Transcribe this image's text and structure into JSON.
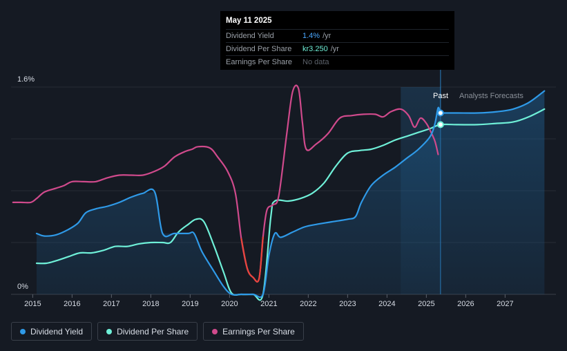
{
  "tooltip": {
    "date": "May 11 2025",
    "rows": [
      {
        "label": "Dividend Yield",
        "value": "1.4%",
        "unit": "/yr"
      },
      {
        "label": "Dividend Per Share",
        "value": "kr3.250",
        "unit": "/yr"
      },
      {
        "label": "Earnings Per Share",
        "value": "No data",
        "unit": ""
      }
    ]
  },
  "legend": [
    {
      "label": "Dividend Yield",
      "color": "#2f9ae8"
    },
    {
      "label": "Dividend Per Share",
      "color": "#6ff0d8"
    },
    {
      "label": "Earnings Per Share",
      "color": "#d04a8c"
    }
  ],
  "chart_data": {
    "type": "line",
    "y_tick_labels": [
      "1.6%",
      "0%"
    ],
    "ylim": [
      0,
      1.6
    ],
    "xlim": [
      2014.45,
      2028.0
    ],
    "x_tick_labels": [
      "2015",
      "2016",
      "2017",
      "2018",
      "2019",
      "2020",
      "2021",
      "2022",
      "2023",
      "2024",
      "2025",
      "2026",
      "2027"
    ],
    "past_label": "Past",
    "forecast_label": "Analysts Forecasts",
    "past_region": [
      2024.35,
      2025.36
    ],
    "current_date": 2025.36,
    "series": [
      {
        "name": "Dividend Yield",
        "color": "#2f9ae8",
        "points": [
          [
            2015.1,
            0.47
          ],
          [
            2015.3,
            0.45
          ],
          [
            2015.6,
            0.46
          ],
          [
            2015.9,
            0.5
          ],
          [
            2016.15,
            0.55
          ],
          [
            2016.35,
            0.63
          ],
          [
            2016.6,
            0.66
          ],
          [
            2016.9,
            0.68
          ],
          [
            2017.2,
            0.71
          ],
          [
            2017.5,
            0.75
          ],
          [
            2017.8,
            0.78
          ],
          [
            2018.1,
            0.79
          ],
          [
            2018.3,
            0.47
          ],
          [
            2018.6,
            0.47
          ],
          [
            2018.95,
            0.47
          ],
          [
            2019.1,
            0.47
          ],
          [
            2019.3,
            0.33
          ],
          [
            2019.6,
            0.18
          ],
          [
            2019.85,
            0.06
          ],
          [
            2020.05,
            0.0
          ],
          [
            2020.3,
            0.0
          ],
          [
            2020.6,
            0.0
          ],
          [
            2020.85,
            0.0
          ],
          [
            2021.0,
            0.3
          ],
          [
            2021.15,
            0.47
          ],
          [
            2021.3,
            0.44
          ],
          [
            2021.6,
            0.48
          ],
          [
            2021.9,
            0.52
          ],
          [
            2022.2,
            0.54
          ],
          [
            2022.6,
            0.56
          ],
          [
            2023.0,
            0.58
          ],
          [
            2023.2,
            0.6
          ],
          [
            2023.35,
            0.71
          ],
          [
            2023.6,
            0.84
          ],
          [
            2023.9,
            0.92
          ],
          [
            2024.2,
            0.98
          ],
          [
            2024.5,
            1.05
          ],
          [
            2024.8,
            1.12
          ],
          [
            2025.1,
            1.22
          ],
          [
            2025.22,
            1.32
          ],
          [
            2025.3,
            1.44
          ],
          [
            2025.36,
            1.4
          ],
          [
            2025.45,
            1.4
          ],
          [
            2025.8,
            1.4
          ],
          [
            2026.3,
            1.4
          ],
          [
            2026.8,
            1.41
          ],
          [
            2027.2,
            1.43
          ],
          [
            2027.6,
            1.48
          ],
          [
            2028.0,
            1.57
          ]
        ]
      },
      {
        "name": "Dividend Per Share",
        "color": "#6ff0d8",
        "points": [
          [
            2015.1,
            0.24
          ],
          [
            2015.35,
            0.24
          ],
          [
            2015.6,
            0.26
          ],
          [
            2015.9,
            0.29
          ],
          [
            2016.2,
            0.32
          ],
          [
            2016.5,
            0.32
          ],
          [
            2016.8,
            0.34
          ],
          [
            2017.1,
            0.37
          ],
          [
            2017.4,
            0.37
          ],
          [
            2017.7,
            0.39
          ],
          [
            2018.0,
            0.4
          ],
          [
            2018.3,
            0.4
          ],
          [
            2018.5,
            0.4
          ],
          [
            2018.7,
            0.48
          ],
          [
            2018.95,
            0.54
          ],
          [
            2019.15,
            0.58
          ],
          [
            2019.35,
            0.56
          ],
          [
            2019.6,
            0.38
          ],
          [
            2019.85,
            0.17
          ],
          [
            2020.05,
            0.01
          ],
          [
            2020.3,
            0.0
          ],
          [
            2020.6,
            0.0
          ],
          [
            2020.85,
            0.0
          ],
          [
            2021.05,
            0.6
          ],
          [
            2021.15,
            0.72
          ],
          [
            2021.5,
            0.72
          ],
          [
            2021.8,
            0.74
          ],
          [
            2022.1,
            0.78
          ],
          [
            2022.4,
            0.86
          ],
          [
            2022.7,
            0.99
          ],
          [
            2023.0,
            1.09
          ],
          [
            2023.3,
            1.11
          ],
          [
            2023.6,
            1.12
          ],
          [
            2023.9,
            1.15
          ],
          [
            2024.2,
            1.19
          ],
          [
            2024.5,
            1.22
          ],
          [
            2024.8,
            1.25
          ],
          [
            2025.1,
            1.28
          ],
          [
            2025.36,
            1.31
          ],
          [
            2025.8,
            1.31
          ],
          [
            2026.3,
            1.31
          ],
          [
            2026.8,
            1.32
          ],
          [
            2027.2,
            1.33
          ],
          [
            2027.6,
            1.37
          ],
          [
            2028.0,
            1.43
          ]
        ]
      },
      {
        "name": "Earnings Per Share",
        "color": "#d04a8c",
        "points": [
          [
            2014.5,
            0.71
          ],
          [
            2014.7,
            0.71
          ],
          [
            2014.95,
            0.71
          ],
          [
            2015.1,
            0.74
          ],
          [
            2015.3,
            0.79
          ],
          [
            2015.6,
            0.82
          ],
          [
            2015.8,
            0.84
          ],
          [
            2016.0,
            0.87
          ],
          [
            2016.3,
            0.87
          ],
          [
            2016.6,
            0.87
          ],
          [
            2016.9,
            0.9
          ],
          [
            2017.2,
            0.92
          ],
          [
            2017.5,
            0.92
          ],
          [
            2017.8,
            0.92
          ],
          [
            2018.1,
            0.95
          ],
          [
            2018.35,
            0.99
          ],
          [
            2018.6,
            1.06
          ],
          [
            2018.85,
            1.1
          ],
          [
            2019.05,
            1.12
          ],
          [
            2019.2,
            1.14
          ],
          [
            2019.5,
            1.13
          ],
          [
            2019.7,
            1.06
          ],
          [
            2019.95,
            0.95
          ],
          [
            2020.15,
            0.78
          ],
          [
            2020.3,
            0.43
          ],
          [
            2020.45,
            0.2
          ],
          [
            2020.6,
            0.13
          ],
          [
            2020.75,
            0.12
          ],
          [
            2020.85,
            0.44
          ],
          [
            2020.95,
            0.65
          ],
          [
            2021.1,
            0.69
          ],
          [
            2021.25,
            0.76
          ],
          [
            2021.45,
            1.23
          ],
          [
            2021.6,
            1.56
          ],
          [
            2021.75,
            1.59
          ],
          [
            2021.85,
            1.33
          ],
          [
            2021.95,
            1.12
          ],
          [
            2022.2,
            1.16
          ],
          [
            2022.5,
            1.24
          ],
          [
            2022.8,
            1.36
          ],
          [
            2023.1,
            1.38
          ],
          [
            2023.4,
            1.39
          ],
          [
            2023.7,
            1.39
          ],
          [
            2023.9,
            1.37
          ],
          [
            2024.1,
            1.41
          ],
          [
            2024.35,
            1.43
          ],
          [
            2024.55,
            1.38
          ],
          [
            2024.7,
            1.29
          ],
          [
            2024.85,
            1.36
          ],
          [
            2025.0,
            1.32
          ],
          [
            2025.12,
            1.25
          ],
          [
            2025.22,
            1.18
          ],
          [
            2025.3,
            1.08
          ]
        ]
      }
    ]
  }
}
